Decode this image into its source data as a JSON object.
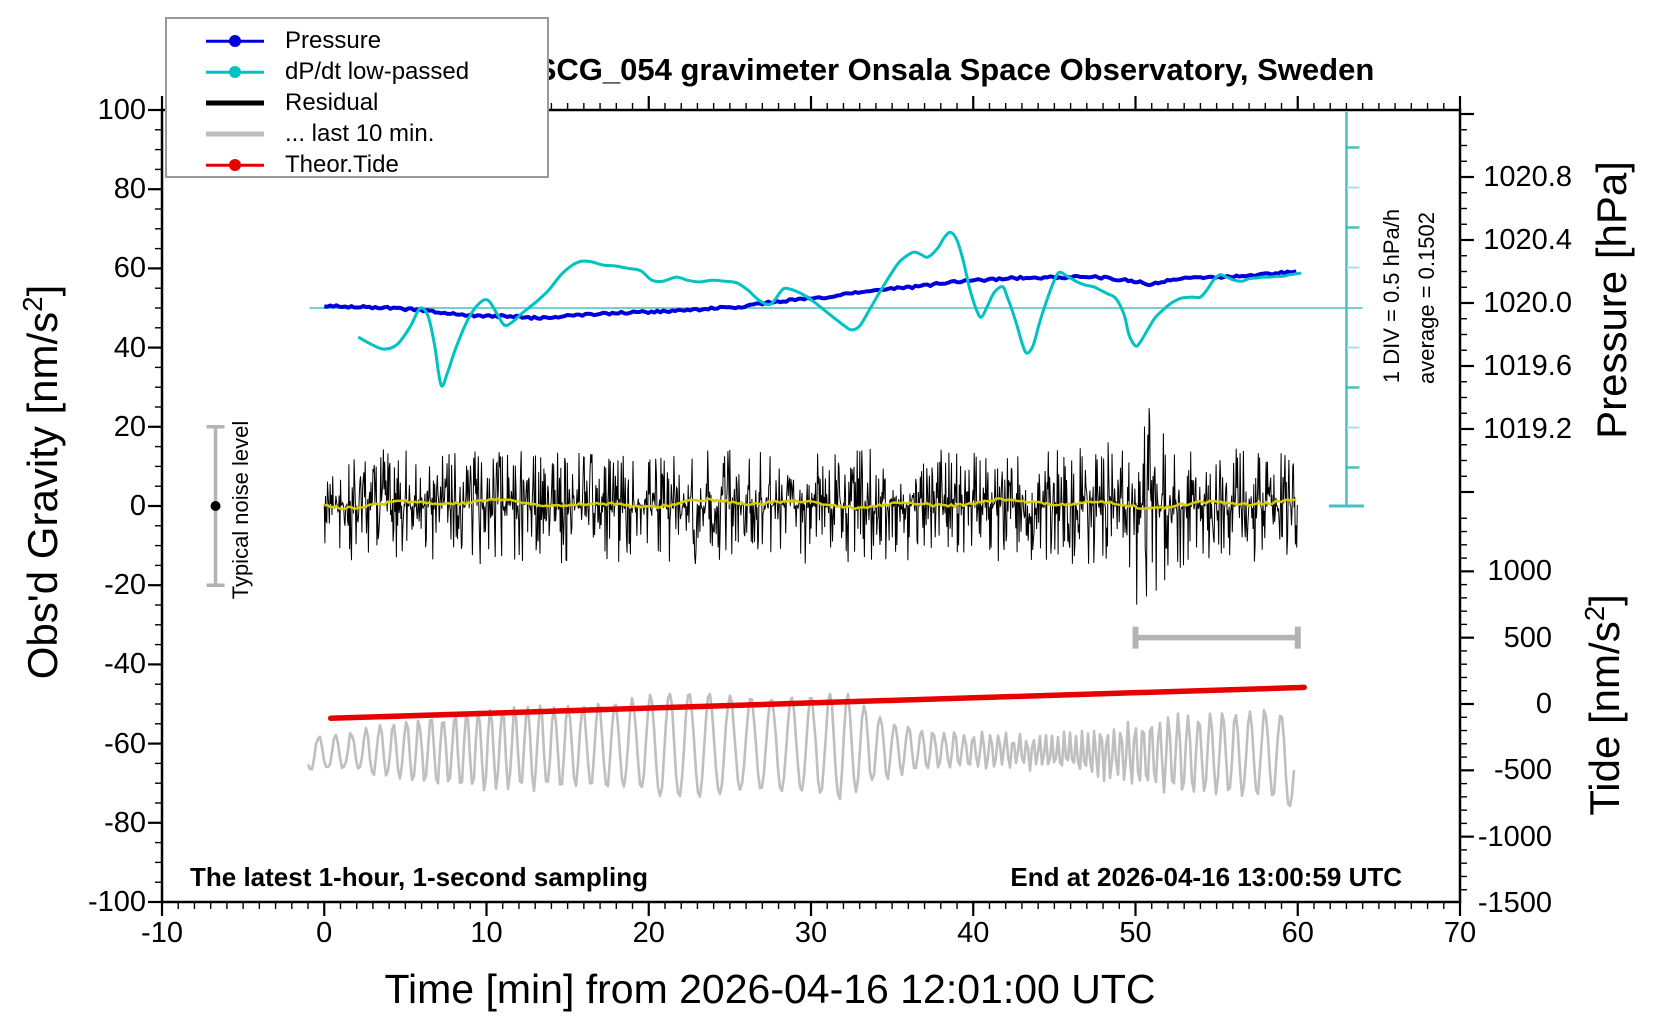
{
  "title": "SCG_054 gravimeter Onsala Space Observatory, Sweden",
  "annotations": {
    "sampling_note": "The latest 1-hour, 1-second sampling",
    "end_note": "End at 2026-04-16 13:00:59 UTC",
    "noise_bar_label": "Typical noise level",
    "div_label": "1 DIV = 0.5 hPa/h",
    "average_label": "average = 0.1502"
  },
  "legend": {
    "items": [
      {
        "label": "Pressure",
        "color": "#0000dd",
        "dot": true,
        "thick": false
      },
      {
        "label": "dP/dt low-passed",
        "color": "#00c2c2",
        "dot": true,
        "thick": false
      },
      {
        "label": "Residual",
        "color": "#000000",
        "dot": false,
        "thick": true
      },
      {
        "label": "... last 10 min.",
        "color": "#bfbfbf",
        "dot": false,
        "thick": true
      },
      {
        "label": "Theor.Tide",
        "color": "#e80000",
        "dot": true,
        "thick": false
      }
    ]
  },
  "axes": {
    "x": {
      "label": "Time [min] from 2026-04-16 12:01:00 UTC",
      "min": -10,
      "max": 70,
      "major_step": 10,
      "minor_step": 1,
      "tick_values": [
        -10,
        0,
        10,
        20,
        30,
        40,
        50,
        60,
        70
      ]
    },
    "gravity": {
      "label_pre": "Obs'd Gravity [nm/s",
      "label_sup": "2",
      "label_post": "]",
      "min": -100,
      "max": 100,
      "major_step": 20,
      "minor_step": 5,
      "tick_values": [
        100,
        80,
        60,
        40,
        20,
        0,
        -20,
        -40,
        -60,
        -80,
        -100
      ]
    },
    "pressure": {
      "label": "Pressure [hPa]",
      "minor_step": 0.1,
      "major_step": 0.4,
      "tick_values": [
        1020.8,
        1020.4,
        1020.0,
        1019.6,
        1019.2
      ]
    },
    "tide": {
      "label_pre": "Tide [nm/s",
      "label_sup": "2",
      "label_post": "]",
      "minor_step": 100,
      "major_step": 500,
      "tick_values": [
        1000,
        500,
        0,
        -500,
        -1000,
        -1500
      ]
    }
  },
  "chart_data": {
    "type": "line",
    "title": "SCG_054 gravimeter Onsala Space Observatory, Sweden",
    "xlabel": "Time [min] from 2026-04-16 12:01:00 UTC",
    "x_range_min": [
      -10,
      70
    ],
    "gravity_range_nm_s2": [
      -100,
      100
    ],
    "pressure_axis_hPa": {
      "ticks": [
        1019.2,
        1019.6,
        1020.0,
        1020.4,
        1020.8
      ]
    },
    "tide_axis_nm_s2": {
      "ticks": [
        -1500,
        -1000,
        -500,
        0,
        500,
        1000
      ]
    },
    "series": [
      {
        "name": "Pressure",
        "axis": "pressure",
        "color": "#0000dd",
        "units": "hPa",
        "seed": 5,
        "points": [
          [
            0,
            1019.981
          ],
          [
            1,
            1019.978
          ],
          [
            2,
            1019.975
          ],
          [
            3,
            1019.972
          ],
          [
            4,
            1019.968
          ],
          [
            5,
            1019.962
          ],
          [
            6,
            1019.956
          ],
          [
            7,
            1019.943
          ],
          [
            8,
            1019.93
          ],
          [
            9,
            1019.921
          ],
          [
            10,
            1019.917
          ],
          [
            11,
            1019.917
          ],
          [
            12,
            1019.911
          ],
          [
            13,
            1019.905
          ],
          [
            14,
            1019.911
          ],
          [
            15,
            1019.918
          ],
          [
            16,
            1019.924
          ],
          [
            17,
            1019.93
          ],
          [
            18,
            1019.937
          ],
          [
            19,
            1019.94
          ],
          [
            20,
            1019.943
          ],
          [
            21,
            1019.946
          ],
          [
            22,
            1019.952
          ],
          [
            23,
            1019.959
          ],
          [
            24,
            1019.965
          ],
          [
            25,
            1019.972
          ],
          [
            26,
            1019.978
          ],
          [
            27,
            1019.997
          ],
          [
            28,
            1020.01
          ],
          [
            29,
            1020.022
          ],
          [
            30,
            1020.029
          ],
          [
            31,
            1020.035
          ],
          [
            32,
            1020.054
          ],
          [
            33,
            1020.067
          ],
          [
            34,
            1020.079
          ],
          [
            35,
            1020.092
          ],
          [
            36,
            1020.098
          ],
          [
            37,
            1020.111
          ],
          [
            38,
            1020.124
          ],
          [
            39,
            1020.137
          ],
          [
            40,
            1020.143
          ],
          [
            41,
            1020.149
          ],
          [
            42,
            1020.156
          ],
          [
            43,
            1020.159
          ],
          [
            44,
            1020.159
          ],
          [
            45,
            1020.162
          ],
          [
            46,
            1020.165
          ],
          [
            47,
            1020.165
          ],
          [
            48,
            1020.162
          ],
          [
            49,
            1020.149
          ],
          [
            50,
            1020.137
          ],
          [
            51,
            1020.117
          ],
          [
            52,
            1020.143
          ],
          [
            53,
            1020.156
          ],
          [
            54,
            1020.162
          ],
          [
            55,
            1020.162
          ],
          [
            56,
            1020.168
          ],
          [
            57,
            1020.175
          ],
          [
            58,
            1020.181
          ],
          [
            59,
            1020.191
          ],
          [
            60,
            1020.2
          ]
        ]
      },
      {
        "name": "dP/dt low-passed",
        "axis": "dpdt",
        "color": "#00c2c2",
        "units": "hPa/h",
        "zero_at_gravity": 50,
        "div_value_hPa_per_h": 0.5,
        "average": 0.1502,
        "points": [
          [
            2.1,
            -0.37
          ],
          [
            2.9,
            -0.46
          ],
          [
            3.7,
            -0.52
          ],
          [
            4.5,
            -0.46
          ],
          [
            5.3,
            -0.24
          ],
          [
            5.9,
            -0.01
          ],
          [
            6.4,
            -0.11
          ],
          [
            6.8,
            -0.47
          ],
          [
            7.2,
            -0.97
          ],
          [
            7.6,
            -0.81
          ],
          [
            8.1,
            -0.51
          ],
          [
            8.9,
            -0.13
          ],
          [
            9.6,
            0.06
          ],
          [
            10.1,
            0.09
          ],
          [
            10.6,
            -0.06
          ],
          [
            11.1,
            -0.22
          ],
          [
            11.6,
            -0.18
          ],
          [
            12.2,
            -0.07
          ],
          [
            13.0,
            0.06
          ],
          [
            13.8,
            0.21
          ],
          [
            14.6,
            0.41
          ],
          [
            15.3,
            0.53
          ],
          [
            15.9,
            0.58
          ],
          [
            16.5,
            0.57
          ],
          [
            17.2,
            0.53
          ],
          [
            17.9,
            0.52
          ],
          [
            18.7,
            0.49
          ],
          [
            19.5,
            0.46
          ],
          [
            20.2,
            0.34
          ],
          [
            20.9,
            0.33
          ],
          [
            21.7,
            0.38
          ],
          [
            22.4,
            0.34
          ],
          [
            23.1,
            0.32
          ],
          [
            23.9,
            0.34
          ],
          [
            24.6,
            0.33
          ],
          [
            25.4,
            0.31
          ],
          [
            26.1,
            0.22
          ],
          [
            26.8,
            0.09
          ],
          [
            27.5,
            0.04
          ],
          [
            28.1,
            0.19
          ],
          [
            28.4,
            0.24
          ],
          [
            29.0,
            0.21
          ],
          [
            29.7,
            0.14
          ],
          [
            30.5,
            0.02
          ],
          [
            31.3,
            -0.11
          ],
          [
            32.0,
            -0.22
          ],
          [
            32.5,
            -0.28
          ],
          [
            33.0,
            -0.23
          ],
          [
            33.6,
            -0.03
          ],
          [
            34.2,
            0.18
          ],
          [
            34.9,
            0.41
          ],
          [
            35.5,
            0.58
          ],
          [
            36.3,
            0.69
          ],
          [
            36.8,
            0.66
          ],
          [
            37.2,
            0.63
          ],
          [
            37.8,
            0.74
          ],
          [
            38.2,
            0.87
          ],
          [
            38.6,
            0.94
          ],
          [
            39.0,
            0.84
          ],
          [
            39.4,
            0.57
          ],
          [
            39.8,
            0.22
          ],
          [
            40.2,
            -0.03
          ],
          [
            40.5,
            -0.12
          ],
          [
            40.9,
            0.03
          ],
          [
            41.3,
            0.19
          ],
          [
            41.8,
            0.26
          ],
          [
            42.1,
            0.13
          ],
          [
            42.6,
            -0.16
          ],
          [
            43.0,
            -0.44
          ],
          [
            43.3,
            -0.57
          ],
          [
            43.7,
            -0.47
          ],
          [
            44.1,
            -0.18
          ],
          [
            44.6,
            0.13
          ],
          [
            45.0,
            0.34
          ],
          [
            45.3,
            0.44
          ],
          [
            45.8,
            0.39
          ],
          [
            46.4,
            0.32
          ],
          [
            46.9,
            0.28
          ],
          [
            47.4,
            0.26
          ],
          [
            47.9,
            0.21
          ],
          [
            48.3,
            0.17
          ],
          [
            48.8,
            0.11
          ],
          [
            49.3,
            -0.09
          ],
          [
            49.6,
            -0.34
          ],
          [
            50.0,
            -0.48
          ],
          [
            50.3,
            -0.43
          ],
          [
            50.8,
            -0.26
          ],
          [
            51.2,
            -0.13
          ],
          [
            51.7,
            -0.03
          ],
          [
            52.1,
            0.04
          ],
          [
            52.5,
            0.09
          ],
          [
            52.9,
            0.12
          ],
          [
            53.5,
            0.13
          ],
          [
            54.0,
            0.13
          ],
          [
            54.4,
            0.22
          ],
          [
            54.8,
            0.34
          ],
          [
            55.2,
            0.41
          ],
          [
            55.6,
            0.38
          ],
          [
            56.1,
            0.34
          ],
          [
            56.6,
            0.33
          ],
          [
            57.0,
            0.36
          ],
          [
            57.5,
            0.37
          ],
          [
            57.8,
            0.38
          ],
          [
            58.3,
            0.38
          ],
          [
            58.7,
            0.39
          ],
          [
            59.1,
            0.39
          ],
          [
            59.5,
            0.41
          ],
          [
            59.9,
            0.42
          ],
          [
            60.2,
            0.43
          ]
        ]
      },
      {
        "name": "Residual",
        "axis": "gravity",
        "color": "#000000",
        "kind": "noise",
        "center": 0,
        "typical_amplitude": 9,
        "spike_amplitude": 26,
        "spike_burst_t": 50.3,
        "seed": 1337,
        "t_range": [
          0,
          60
        ]
      },
      {
        "name": "Residual low-passed",
        "axis": "gravity",
        "color": "#d4cd00",
        "kind": "smooth-noise",
        "center": 0.6,
        "amplitude": 1.3,
        "seed": 77,
        "t_range": [
          0,
          60
        ]
      },
      {
        "name": "... last 10 min.",
        "axis": "tide",
        "color": "#bfbfbf",
        "kind": "oscillation",
        "center": -340,
        "amplitude_range": [
          120,
          410
        ],
        "seed": 42,
        "t_range": [
          -1,
          59.8
        ]
      },
      {
        "name": "Theor.Tide",
        "axis": "tide",
        "color": "#e80000",
        "units": "nm/s2",
        "points": [
          [
            0.4,
            -108
          ],
          [
            30,
            8
          ],
          [
            60.4,
            125
          ]
        ]
      }
    ],
    "markers": {
      "noise_error_bar": {
        "t": -6.7,
        "gravity_center": 0,
        "gravity_half_range": 20
      },
      "last10_scale_bar": {
        "t_start": 50,
        "t_end": 60,
        "tide": 500
      },
      "dpdt_ruler": {
        "t": 63,
        "gravity_span": [
          0,
          99.5
        ],
        "div_hPa_per_h": 0.5
      },
      "dpdt_zero_line": {
        "gravity": 50,
        "t_start": -0.9,
        "t_end": 64
      }
    }
  },
  "colors": {
    "pressure": "#0000dd",
    "dpdt": "#00c2c2",
    "dpdt_line": "#76d0d0",
    "ruler": "#49bfbf",
    "ruler_minor": "#a5e0e0",
    "residual": "#000000",
    "residual_smooth": "#d4cd00",
    "last10": "#bfbfbf",
    "tide": "#e80000",
    "bars": "#b3b3b3",
    "frame": "#000000"
  }
}
